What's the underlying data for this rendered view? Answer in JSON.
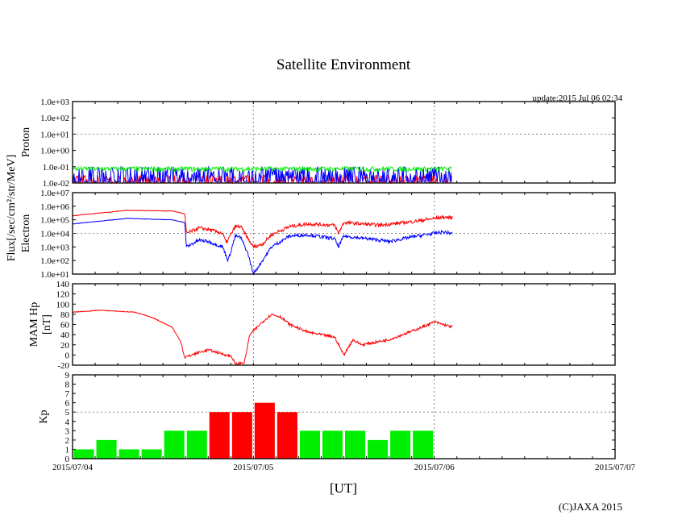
{
  "title": "Satellite Environment",
  "update": "update:2015 Jul 06 02:34",
  "copyright": "(C)JAXA 2015",
  "xlabel": "[UT]",
  "flux_label": "Flux[/sec/cm²/str/MeV]",
  "colors": {
    "red": "#ff0000",
    "blue": "#0000ff",
    "green": "#00ee00",
    "grid": "#888888"
  },
  "chart_data": [
    {
      "type": "line",
      "name": "proton",
      "ylabel": "Proton",
      "yscale": "log",
      "ylim": [
        0.01,
        1000
      ],
      "yticks": [
        "1.0e-02",
        "1.0e-01",
        "1.0e+00",
        "1.0e+01",
        "1.0e+02",
        "1.0e+03"
      ],
      "xlim_days": [
        0,
        3
      ],
      "data_end_day": 2.1,
      "series": [
        {
          "name": "red",
          "level": [
            0.01,
            0.03
          ]
        },
        {
          "name": "blue",
          "level": [
            0.012,
            0.1
          ]
        },
        {
          "name": "green",
          "level": [
            0.05,
            0.1
          ]
        }
      ]
    },
    {
      "type": "line",
      "name": "electron",
      "ylabel": "Electron",
      "yscale": "log",
      "ylim": [
        10,
        10000000.0
      ],
      "yticks": [
        "1.0e+01",
        "1.0e+02",
        "1.0e+03",
        "1.0e+04",
        "1.0e+05",
        "1.0e+06",
        "1.0e+07"
      ],
      "series": [
        {
          "name": "red",
          "x": [
            0,
            0.3,
            0.55,
            0.62,
            0.63,
            0.7,
            0.75,
            0.83,
            0.85,
            0.9,
            0.93,
            0.97,
            1.0,
            1.05,
            1.1,
            1.2,
            1.3,
            1.45,
            1.47,
            1.5,
            1.7,
            1.9,
            2.05,
            2.1
          ],
          "log10y": [
            5.3,
            5.7,
            5.65,
            5.45,
            4.0,
            4.4,
            4.3,
            4.0,
            3.3,
            4.5,
            4.5,
            3.6,
            3.0,
            3.2,
            3.9,
            4.5,
            4.7,
            4.6,
            4.0,
            4.8,
            4.6,
            4.9,
            5.2,
            5.15
          ]
        },
        {
          "name": "blue",
          "x": [
            0,
            0.3,
            0.55,
            0.62,
            0.63,
            0.7,
            0.75,
            0.83,
            0.86,
            0.9,
            0.93,
            0.97,
            1.0,
            1.05,
            1.1,
            1.2,
            1.3,
            1.45,
            1.47,
            1.5,
            1.7,
            1.75,
            1.9,
            2.05,
            2.1
          ],
          "log10y": [
            4.7,
            5.1,
            5.0,
            4.8,
            3.0,
            3.5,
            3.4,
            3.0,
            2.0,
            3.8,
            3.7,
            2.5,
            1.0,
            2.0,
            3.0,
            3.8,
            3.9,
            3.6,
            3.0,
            3.8,
            3.5,
            3.4,
            3.8,
            4.1,
            4.0
          ]
        }
      ]
    },
    {
      "type": "line",
      "name": "mam",
      "ylabel": "MAM Hp",
      "ylabel2": "[nT]",
      "ylim": [
        -20,
        140
      ],
      "yticks": [
        "-20",
        "0",
        "20",
        "40",
        "60",
        "80",
        "100",
        "120",
        "140"
      ],
      "series": [
        {
          "name": "red",
          "x": [
            0,
            0.15,
            0.35,
            0.45,
            0.55,
            0.6,
            0.62,
            0.7,
            0.75,
            0.8,
            0.88,
            0.9,
            0.95,
            0.98,
            1.05,
            1.1,
            1.15,
            1.2,
            1.3,
            1.45,
            1.5,
            1.55,
            1.6,
            1.75,
            1.9,
            2.0,
            2.1
          ],
          "y": [
            84,
            88,
            84,
            72,
            55,
            25,
            -5,
            5,
            10,
            5,
            -3,
            -18,
            -15,
            40,
            65,
            80,
            75,
            60,
            45,
            35,
            0,
            30,
            20,
            30,
            50,
            65,
            55
          ]
        }
      ]
    },
    {
      "type": "bar",
      "name": "kp",
      "ylabel": "Kp",
      "ylim": [
        0,
        9
      ],
      "yticks": [
        "0",
        "1",
        "2",
        "3",
        "4",
        "5",
        "6",
        "7",
        "8",
        "9"
      ],
      "values": [
        1,
        2,
        1,
        1,
        3,
        3,
        5,
        5,
        6,
        5,
        3,
        3,
        3,
        2,
        3,
        3
      ],
      "threshold": 5
    },
    {
      "xticks": [
        "2015/07/04",
        "2015/07/05",
        "2015/07/06",
        "2015/07/07"
      ]
    }
  ]
}
